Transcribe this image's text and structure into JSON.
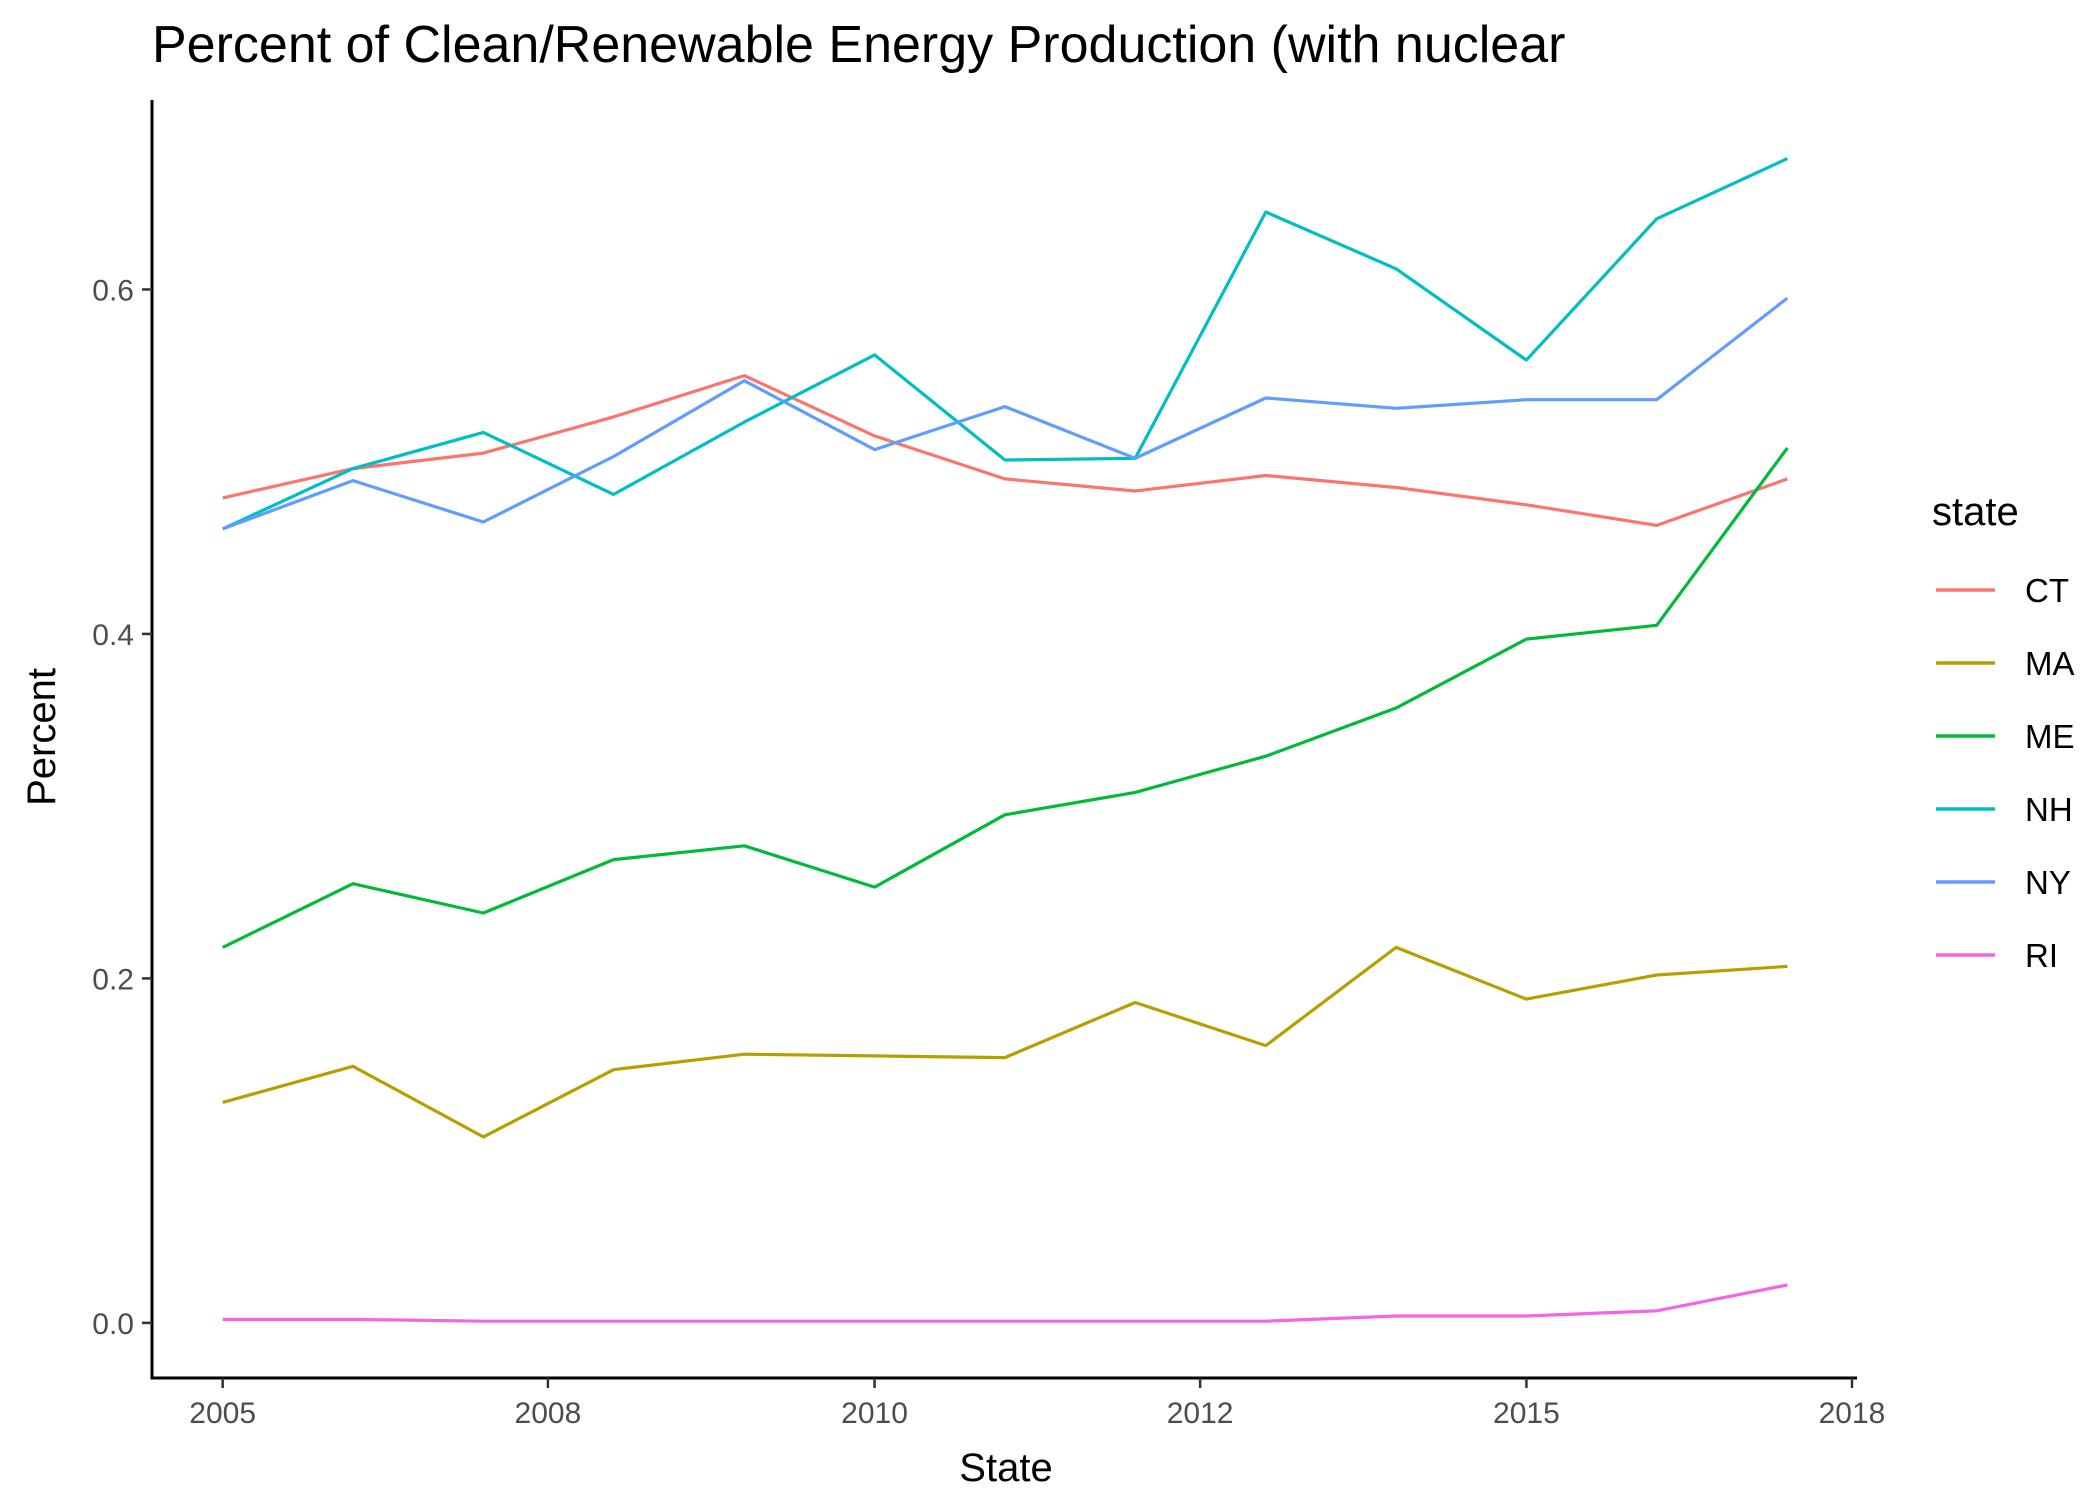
{
  "chart_data": {
    "type": "line",
    "title": "Percent of Clean/Renewable Energy Production (with nuclear",
    "xlabel": "State",
    "ylabel": "Percent",
    "x_is_date": true,
    "x": [
      "2005-01-01",
      "2006-01-01",
      "2007-01-01",
      "2008-01-01",
      "2009-01-01",
      "2010-01-01",
      "2011-01-01",
      "2012-01-01",
      "2013-01-01",
      "2014-01-01",
      "2015-01-01",
      "2016-01-01",
      "2017-01-01"
    ],
    "xlim": [
      "2004-06-17",
      "2017-07-15"
    ],
    "xticks": [
      "2005-01-01",
      "2007-07-01",
      "2010-01-01",
      "2012-07-01",
      "2015-01-01",
      "2017-07-01"
    ],
    "xtick_labels": [
      "2005",
      "2008",
      "2010",
      "2012",
      "2015",
      "2018"
    ],
    "ylim": [
      -0.032,
      0.71
    ],
    "yticks": [
      0.0,
      0.2,
      0.4,
      0.6
    ],
    "ytick_labels": [
      "0.0",
      "0.2",
      "0.4",
      "0.6"
    ],
    "grid": false,
    "legend": {
      "title": "state",
      "position": "right"
    },
    "series": [
      {
        "name": "CT",
        "color": "#F8766D",
        "values": [
          0.479,
          0.496,
          0.505,
          0.526,
          0.55,
          0.515,
          0.49,
          0.483,
          0.492,
          0.485,
          0.475,
          0.463,
          0.49
        ]
      },
      {
        "name": "MA",
        "color": "#B79F00",
        "values": [
          0.128,
          0.149,
          0.108,
          0.147,
          0.156,
          0.155,
          0.154,
          0.186,
          0.161,
          0.218,
          0.188,
          0.202,
          0.207
        ]
      },
      {
        "name": "ME",
        "color": "#00BA38",
        "values": [
          0.218,
          0.255,
          0.238,
          0.269,
          0.277,
          0.253,
          0.295,
          0.308,
          0.329,
          0.357,
          0.397,
          0.405,
          0.508
        ]
      },
      {
        "name": "NH",
        "color": "#00BFC4",
        "values": [
          0.461,
          0.496,
          0.517,
          0.481,
          0.523,
          0.562,
          0.501,
          0.502,
          0.645,
          0.612,
          0.559,
          0.641,
          0.676
        ]
      },
      {
        "name": "NY",
        "color": "#619CFF",
        "values": [
          0.461,
          0.489,
          0.465,
          0.503,
          0.547,
          0.507,
          0.532,
          0.502,
          0.537,
          0.531,
          0.536,
          0.536,
          0.595
        ]
      },
      {
        "name": "RI",
        "color": "#F564E3",
        "values": [
          0.002,
          0.002,
          0.001,
          0.001,
          0.001,
          0.001,
          0.001,
          0.001,
          0.001,
          0.004,
          0.004,
          0.007,
          0.022
        ]
      }
    ]
  }
}
